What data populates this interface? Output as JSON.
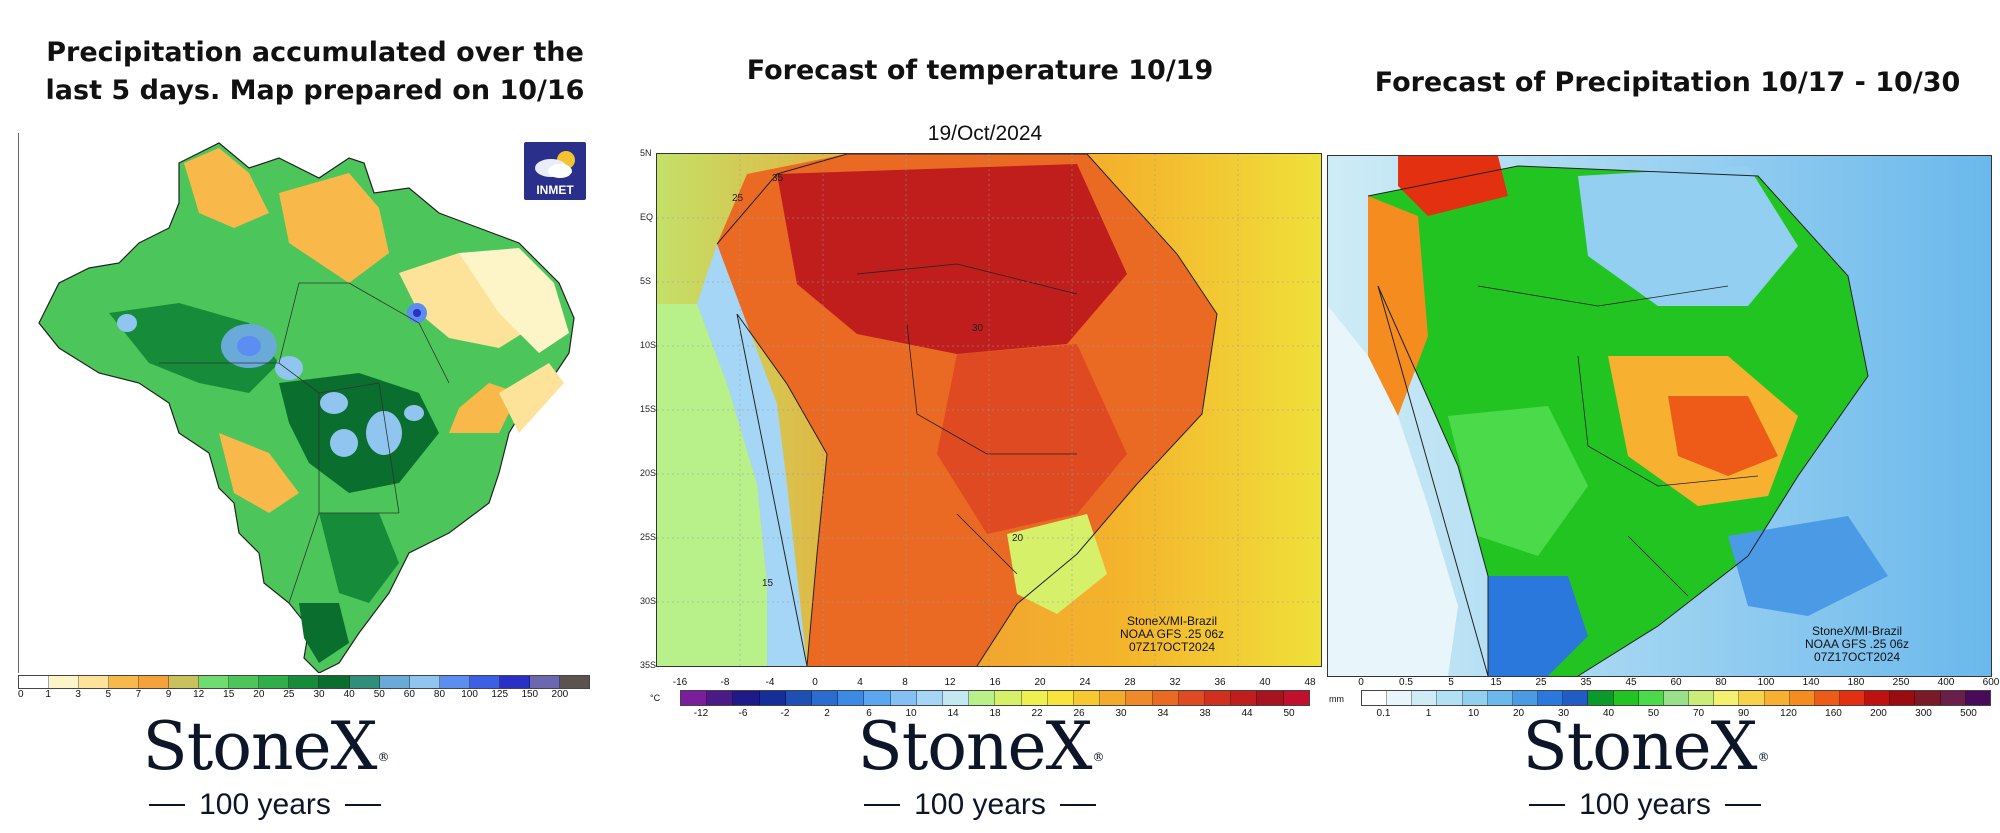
{
  "panels": [
    {
      "title": "Precipitation accumulated over the last 5 days. Map prepared on 10/16",
      "logo_text": "INMET",
      "legend": {
        "ticks": [
          "0",
          "1",
          "3",
          "5",
          "7",
          "9",
          "12",
          "15",
          "20",
          "25",
          "30",
          "40",
          "50",
          "60",
          "80",
          "100",
          "125",
          "150",
          "200"
        ],
        "colors": [
          "#ffffff",
          "#fdf5c8",
          "#fde39a",
          "#f8b84a",
          "#f6a23a",
          "#c9c25c",
          "#6fdc6f",
          "#4cc65a",
          "#2fae4a",
          "#168c3a",
          "#0a6e2e",
          "#2f8f7a",
          "#6aaad8",
          "#8fc5ee",
          "#5c8df0",
          "#3c5fe6",
          "#2a2fc8",
          "#6b67b0",
          "#5b534f"
        ]
      },
      "brand": {
        "wordmark": "StoneX",
        "reg": "®",
        "years": "100 years"
      }
    },
    {
      "title": "Forecast of temperature 10/19",
      "subtitle": "19/Oct/2024",
      "lat_labels": [
        "5N",
        "EQ",
        "5S",
        "10S",
        "15S",
        "20S",
        "25S",
        "30S",
        "35S"
      ],
      "contour_labels": [
        "35",
        "25",
        "30",
        "20",
        "15"
      ],
      "credit": [
        "StoneX/MI-Brazil",
        "NOAA GFS .25 06z",
        "07Z17OCT2024"
      ],
      "legend": {
        "unit": "°C",
        "top_ticks": [
          "-16",
          "-8",
          "-4",
          "0",
          "4",
          "8",
          "12",
          "16",
          "20",
          "24",
          "28",
          "32",
          "36",
          "40",
          "48"
        ],
        "bottom_ticks": [
          "-12",
          "-6",
          "-2",
          "2",
          "6",
          "10",
          "14",
          "18",
          "22",
          "26",
          "30",
          "34",
          "38",
          "44",
          "50"
        ],
        "colors": [
          "#7a1e9c",
          "#4a1a86",
          "#1e1a8a",
          "#142f9a",
          "#1e4fb4",
          "#2a6cd0",
          "#3a8ae6",
          "#5aa6f0",
          "#84c0f4",
          "#a6d6f6",
          "#c4e8f2",
          "#b8f08a",
          "#d6f06a",
          "#eef050",
          "#f8e43a",
          "#f8c830",
          "#f4aa2c",
          "#f08a28",
          "#ea6a24",
          "#e04a22",
          "#d2301e",
          "#c01e1c",
          "#a8141e",
          "#c0102e"
        ]
      },
      "brand": {
        "wordmark": "StoneX",
        "reg": "®",
        "years": "100 years"
      }
    },
    {
      "title": "Forecast of Precipitation 10/17 - 10/30",
      "credit": [
        "StoneX/MI-Brazil",
        "NOAA GFS .25 06z",
        "07Z17OCT2024"
      ],
      "legend": {
        "unit": "mm",
        "top_ticks": [
          "0",
          "0.5",
          "5",
          "15",
          "25",
          "35",
          "45",
          "60",
          "80",
          "100",
          "140",
          "180",
          "250",
          "400",
          "600"
        ],
        "bottom_ticks": [
          "0.1",
          "1",
          "10",
          "20",
          "30",
          "40",
          "50",
          "70",
          "90",
          "120",
          "160",
          "200",
          "300",
          "500"
        ],
        "colors": [
          "#ffffff",
          "#e8f6fb",
          "#cfecf6",
          "#b2e0f4",
          "#92cff0",
          "#6ab8ec",
          "#4a9ae6",
          "#2a78dc",
          "#1f5cc8",
          "#0a9a2a",
          "#22c422",
          "#4ada4a",
          "#9ae08a",
          "#ccec7a",
          "#f4f070",
          "#f8d24a",
          "#f8b030",
          "#f48c20",
          "#ee5a18",
          "#e23010",
          "#c01010",
          "#9a0c10",
          "#7a1a24",
          "#6a1e4a",
          "#4a0a5a"
        ]
      },
      "brand": {
        "wordmark": "StoneX",
        "reg": "®",
        "years": "100 years"
      }
    }
  ]
}
